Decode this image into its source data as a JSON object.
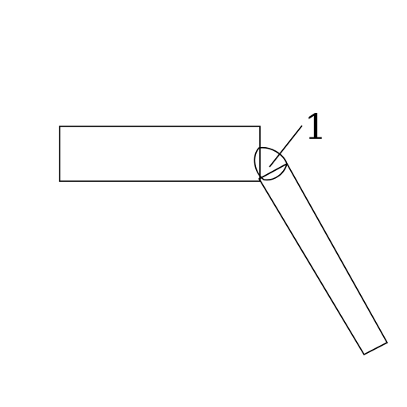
{
  "diagram": {
    "callout_label": "1",
    "colors": {
      "stroke": "#000000",
      "background": "#ffffff"
    }
  }
}
